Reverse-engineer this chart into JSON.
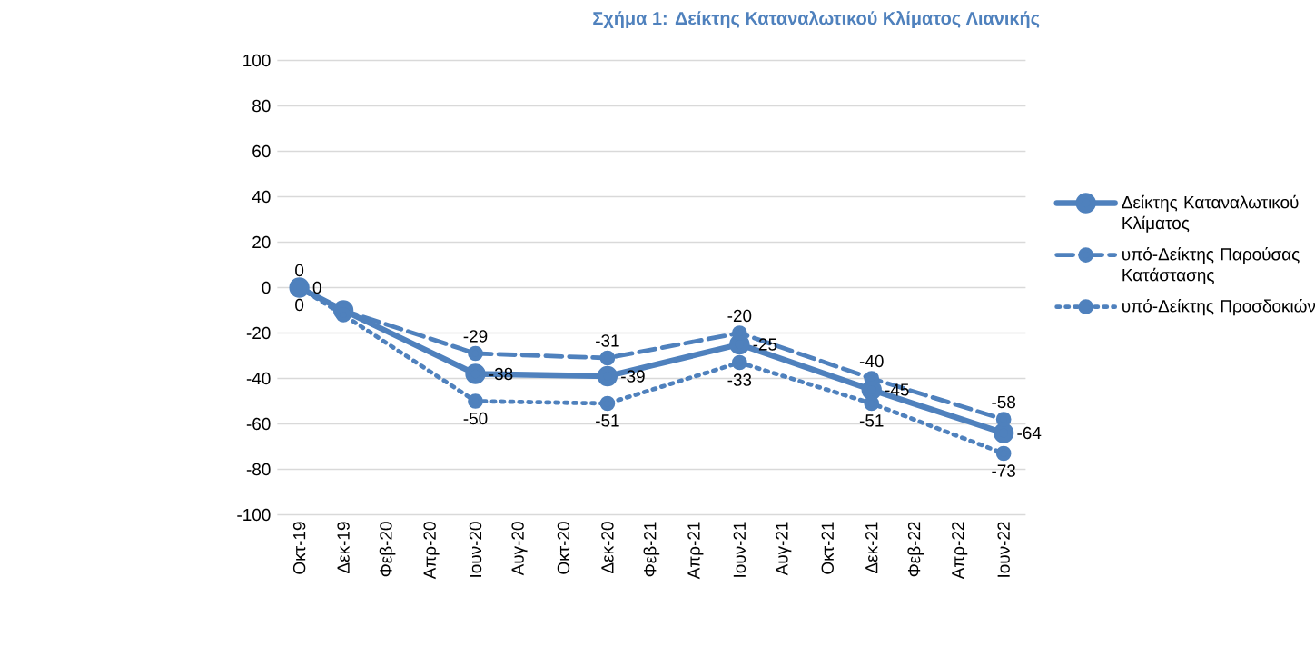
{
  "chart_data": {
    "type": "line",
    "title": "Σχήμα 1: Δείκτης Καταναλωτικού Κλίματος Λιανικής",
    "categories": [
      "Οκτ-19",
      "Δεκ-19",
      "Φεβ-20",
      "Απρ-20",
      "Ιουν-20",
      "Αυγ-20",
      "Οκτ-20",
      "Δεκ-20",
      "Φεβ-21",
      "Απρ-21",
      "Ιουν-21",
      "Αυγ-21",
      "Οκτ-21",
      "Δεκ-21",
      "Φεβ-22",
      "Απρ-22",
      "Ιουν-22"
    ],
    "series": [
      {
        "name": "Δείκτης Καταναλωτικού Κλίματος",
        "color": "#4f81bd",
        "line_style": "solid",
        "values": [
          0,
          -10,
          null,
          null,
          -38,
          null,
          null,
          -39,
          null,
          null,
          -25,
          null,
          null,
          -45,
          null,
          null,
          -64
        ],
        "value_labels": [
          "0",
          null,
          null,
          null,
          "-38",
          null,
          null,
          "-39",
          null,
          null,
          "-25",
          null,
          null,
          "-45",
          null,
          null,
          "-64"
        ]
      },
      {
        "name": "υπό-Δείκτης Παρούσας Κατάστασης",
        "color": "#4f81bd",
        "line_style": "dashed",
        "values": [
          0,
          -10,
          null,
          null,
          -29,
          null,
          null,
          -31,
          null,
          null,
          -20,
          null,
          null,
          -40,
          null,
          null,
          -58
        ],
        "value_labels": [
          "0",
          null,
          null,
          null,
          "-29",
          null,
          null,
          "-31",
          null,
          null,
          "-20",
          null,
          null,
          "-40",
          null,
          null,
          "-58"
        ]
      },
      {
        "name": "υπό-Δείκτης Προσδοκιών",
        "color": "#4f81bd",
        "line_style": "dotted",
        "values": [
          0,
          -12,
          null,
          null,
          -50,
          null,
          null,
          -51,
          null,
          null,
          -33,
          null,
          null,
          -51,
          null,
          null,
          -73
        ],
        "value_labels": [
          "0",
          null,
          null,
          null,
          "-50",
          null,
          null,
          "-51",
          null,
          null,
          "-33",
          null,
          null,
          "-51",
          null,
          null,
          "-73"
        ]
      }
    ],
    "ylim": [
      -100,
      100
    ],
    "yticks": [
      -100,
      -80,
      -60,
      -40,
      -20,
      0,
      20,
      40,
      60,
      80,
      100
    ],
    "grid": "y",
    "legend": "right",
    "marker": "circle"
  }
}
